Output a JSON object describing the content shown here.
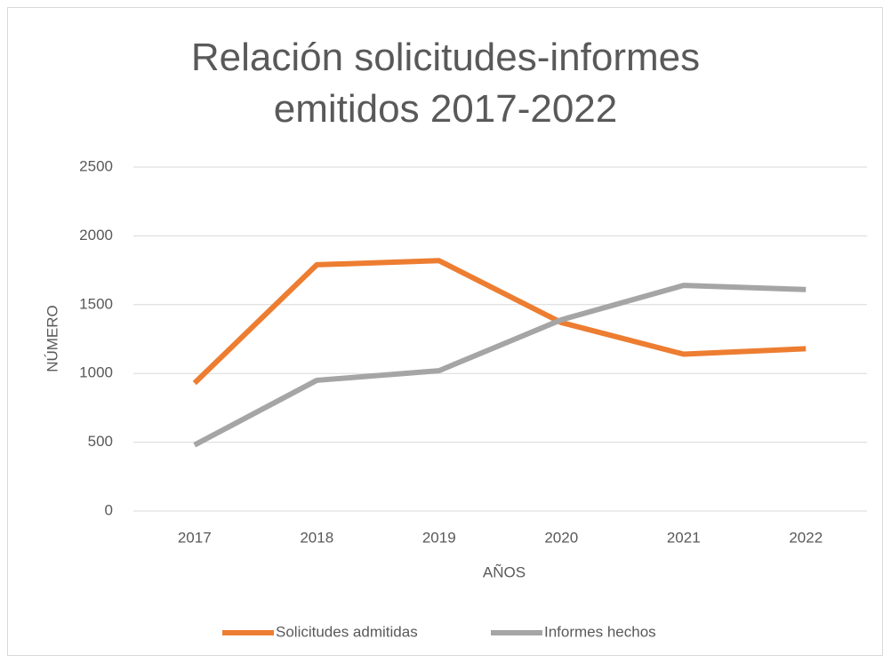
{
  "chart_data": {
    "type": "line",
    "title": "Relación solicitudes-informes emitidos 2017-2022",
    "x_label": "AÑOS",
    "y_label": "NÚMERO",
    "categories": [
      "2017",
      "2018",
      "2019",
      "2020",
      "2021",
      "2022"
    ],
    "series": [
      {
        "name": "Solicitudes admitidas",
        "color": "#ed7d31",
        "values": [
          930,
          1790,
          1820,
          1370,
          1140,
          1180
        ]
      },
      {
        "name": "Informes hechos",
        "color": "#a5a5a5",
        "values": [
          480,
          950,
          1020,
          1390,
          1640,
          1610
        ]
      }
    ],
    "ylim": [
      0,
      2500
    ],
    "yticks": [
      0,
      500,
      1000,
      1500,
      2000,
      2500
    ],
    "grid": true,
    "legend": "bottom"
  }
}
